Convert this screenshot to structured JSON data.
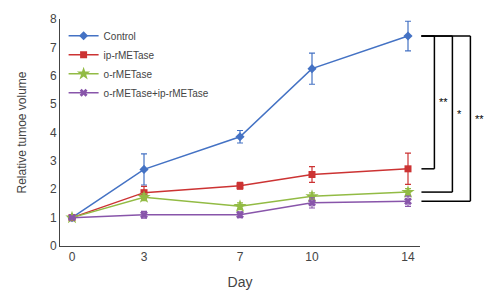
{
  "chart_data": {
    "type": "line",
    "xlabel": "Day",
    "ylabel": "Relative tumoe volume",
    "x": [
      0,
      3,
      7,
      10,
      14
    ],
    "series": [
      {
        "name": "Control",
        "color": "#4472C4",
        "marker": "diamond",
        "values": [
          1.0,
          2.7,
          3.85,
          6.25,
          7.4
        ],
        "errors": [
          0.0,
          0.55,
          0.22,
          0.55,
          0.52
        ]
      },
      {
        "name": "ip-rMETase",
        "color": "#CC3333",
        "marker": "square",
        "values": [
          1.0,
          1.88,
          2.12,
          2.52,
          2.72
        ],
        "errors": [
          0.0,
          0.22,
          0.12,
          0.28,
          0.55
        ]
      },
      {
        "name": "o-rMETase",
        "color": "#92BB44",
        "marker": "star",
        "values": [
          1.0,
          1.72,
          1.4,
          1.75,
          1.9
        ],
        "errors": [
          0.0,
          0.12,
          0.12,
          0.12,
          0.12
        ]
      },
      {
        "name": "o-rMETase+ip-rMETase",
        "color": "#8855AA",
        "marker": "x",
        "values": [
          1.0,
          1.1,
          1.1,
          1.52,
          1.58
        ],
        "errors": [
          0.0,
          0.12,
          0.1,
          0.18,
          0.18
        ]
      }
    ],
    "xlim": [
      -0.5,
      14.5
    ],
    "xticks": [
      0,
      3,
      7,
      10,
      14
    ],
    "ylim": [
      0,
      8
    ],
    "yticks": [
      0,
      1,
      2,
      3,
      4,
      5,
      6,
      7,
      8
    ],
    "grid": false,
    "legend": "upper left",
    "annotations": [
      {
        "text": "**",
        "y_from": 7.4,
        "y_to": 2.72
      },
      {
        "text": "*",
        "y_from": 7.4,
        "y_to": 1.9
      },
      {
        "text": "**",
        "y_from": 7.4,
        "y_to": 1.58
      }
    ]
  }
}
